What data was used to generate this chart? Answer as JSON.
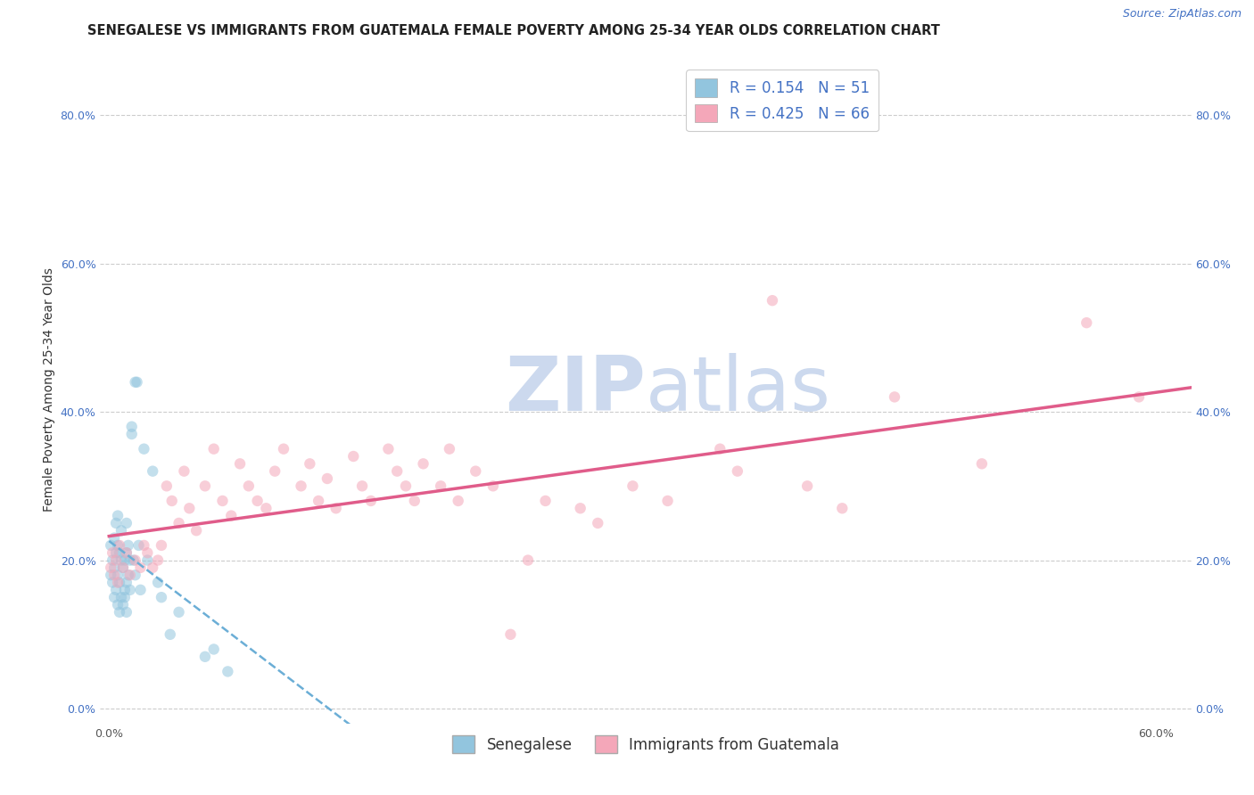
{
  "title": "SENEGALESE VS IMMIGRANTS FROM GUATEMALA FEMALE POVERTY AMONG 25-34 YEAR OLDS CORRELATION CHART",
  "source": "Source: ZipAtlas.com",
  "ylabel": "Female Poverty Among 25-34 Year Olds",
  "xlim": [
    -0.005,
    0.62
  ],
  "ylim": [
    -0.02,
    0.88
  ],
  "xticks": [
    0.0,
    0.1,
    0.2,
    0.3,
    0.4,
    0.5,
    0.6
  ],
  "xticklabels": [
    "0.0%",
    "",
    "",
    "",
    "",
    "",
    "60.0%"
  ],
  "yticks": [
    0.0,
    0.2,
    0.4,
    0.6,
    0.8
  ],
  "yticklabels": [
    "0.0%",
    "20.0%",
    "40.0%",
    "60.0%",
    "80.0%"
  ],
  "grid_color": "#cccccc",
  "background_color": "#ffffff",
  "R_senegalese": 0.154,
  "N_senegalese": 51,
  "R_guatemala": 0.425,
  "N_guatemala": 66,
  "color_senegalese": "#92c5de",
  "color_guatemala": "#f4a7b9",
  "trend_color_senegalese": "#6baed6",
  "trend_color_guatemala": "#e05c8a",
  "watermark_color": "#ccd9ee",
  "legend_label_senegalese": "Senegalese",
  "legend_label_guatemala": "Immigrants from Guatemala",
  "title_fontsize": 10.5,
  "axis_label_fontsize": 10,
  "tick_fontsize": 9,
  "legend_fontsize": 12,
  "scatter_size": 80,
  "scatter_alpha": 0.55,
  "sen_x": [
    0.001,
    0.001,
    0.002,
    0.002,
    0.003,
    0.003,
    0.003,
    0.004,
    0.004,
    0.004,
    0.005,
    0.005,
    0.005,
    0.005,
    0.006,
    0.006,
    0.006,
    0.007,
    0.007,
    0.007,
    0.008,
    0.008,
    0.009,
    0.009,
    0.009,
    0.01,
    0.01,
    0.01,
    0.01,
    0.011,
    0.011,
    0.012,
    0.012,
    0.013,
    0.013,
    0.014,
    0.015,
    0.015,
    0.016,
    0.017,
    0.018,
    0.02,
    0.022,
    0.025,
    0.028,
    0.03,
    0.035,
    0.04,
    0.055,
    0.06,
    0.068
  ],
  "sen_y": [
    0.18,
    0.22,
    0.17,
    0.2,
    0.15,
    0.19,
    0.23,
    0.16,
    0.21,
    0.25,
    0.14,
    0.18,
    0.22,
    0.26,
    0.13,
    0.17,
    0.21,
    0.15,
    0.2,
    0.24,
    0.14,
    0.19,
    0.16,
    0.2,
    0.15,
    0.17,
    0.21,
    0.25,
    0.13,
    0.18,
    0.22,
    0.16,
    0.2,
    0.38,
    0.37,
    0.2,
    0.18,
    0.44,
    0.44,
    0.22,
    0.16,
    0.35,
    0.2,
    0.32,
    0.17,
    0.15,
    0.1,
    0.13,
    0.07,
    0.08,
    0.05
  ],
  "guat_x": [
    0.001,
    0.002,
    0.003,
    0.004,
    0.005,
    0.006,
    0.008,
    0.01,
    0.012,
    0.015,
    0.018,
    0.02,
    0.022,
    0.025,
    0.028,
    0.03,
    0.033,
    0.036,
    0.04,
    0.043,
    0.046,
    0.05,
    0.055,
    0.06,
    0.065,
    0.07,
    0.075,
    0.08,
    0.085,
    0.09,
    0.095,
    0.1,
    0.11,
    0.115,
    0.12,
    0.125,
    0.13,
    0.14,
    0.145,
    0.15,
    0.16,
    0.165,
    0.17,
    0.175,
    0.18,
    0.19,
    0.195,
    0.2,
    0.21,
    0.22,
    0.23,
    0.24,
    0.25,
    0.27,
    0.28,
    0.3,
    0.32,
    0.35,
    0.36,
    0.38,
    0.4,
    0.42,
    0.45,
    0.5,
    0.56,
    0.59
  ],
  "guat_y": [
    0.19,
    0.21,
    0.18,
    0.2,
    0.17,
    0.22,
    0.19,
    0.21,
    0.18,
    0.2,
    0.19,
    0.22,
    0.21,
    0.19,
    0.2,
    0.22,
    0.3,
    0.28,
    0.25,
    0.32,
    0.27,
    0.24,
    0.3,
    0.35,
    0.28,
    0.26,
    0.33,
    0.3,
    0.28,
    0.27,
    0.32,
    0.35,
    0.3,
    0.33,
    0.28,
    0.31,
    0.27,
    0.34,
    0.3,
    0.28,
    0.35,
    0.32,
    0.3,
    0.28,
    0.33,
    0.3,
    0.35,
    0.28,
    0.32,
    0.3,
    0.1,
    0.2,
    0.28,
    0.27,
    0.25,
    0.3,
    0.28,
    0.35,
    0.32,
    0.55,
    0.3,
    0.27,
    0.42,
    0.33,
    0.52,
    0.42
  ]
}
